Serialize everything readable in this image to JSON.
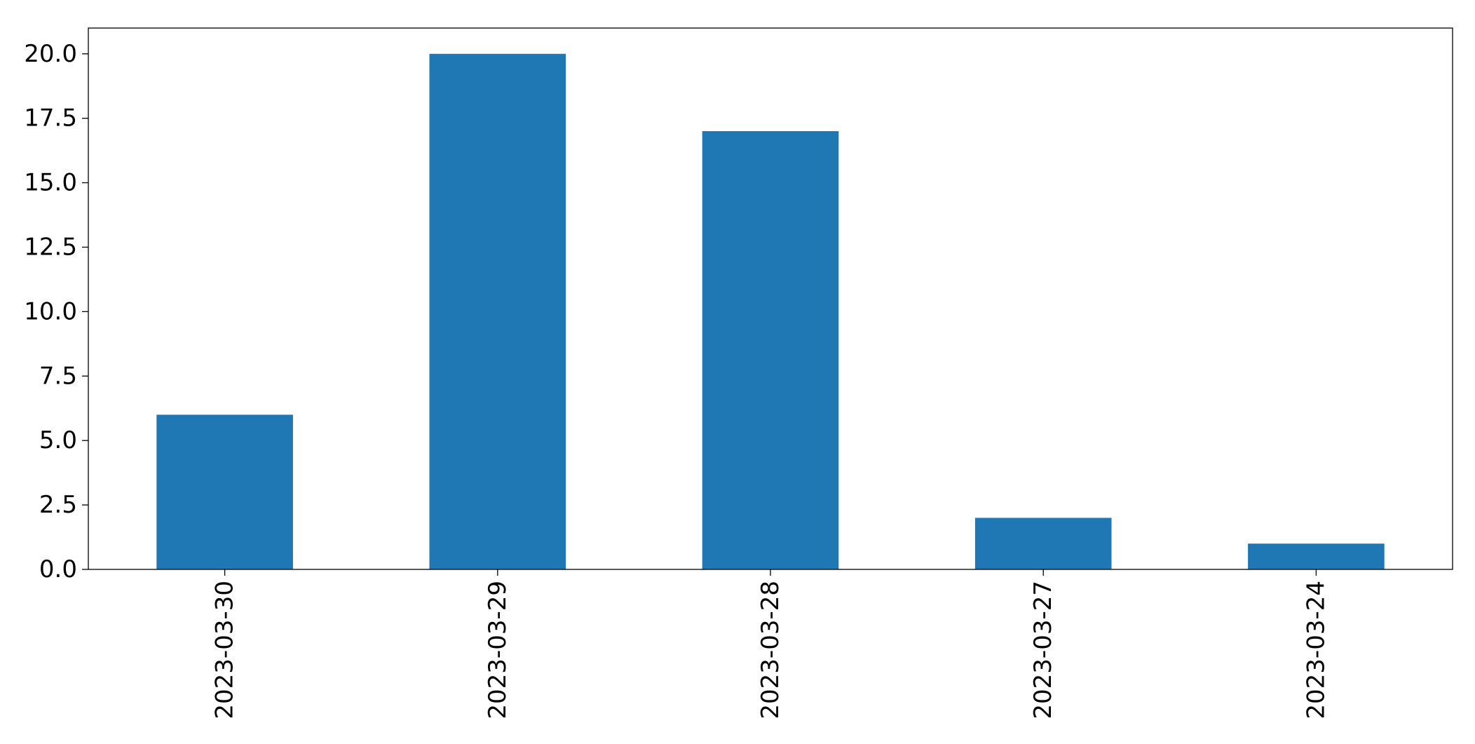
{
  "chart_data": {
    "type": "bar",
    "title": "",
    "xlabel": "",
    "ylabel": "",
    "categories": [
      "2023-03-30",
      "2023-03-29",
      "2023-03-28",
      "2023-03-27",
      "2023-03-24"
    ],
    "values": [
      6,
      20,
      17,
      2,
      1
    ],
    "ylim": [
      0,
      21
    ],
    "yticks": [
      "0.0",
      "2.5",
      "5.0",
      "7.5",
      "10.0",
      "12.5",
      "15.0",
      "17.5",
      "20.0"
    ],
    "x_tick_rotation": "vertical",
    "grid": false,
    "legend": false,
    "bar_color": "#1f77b4"
  }
}
